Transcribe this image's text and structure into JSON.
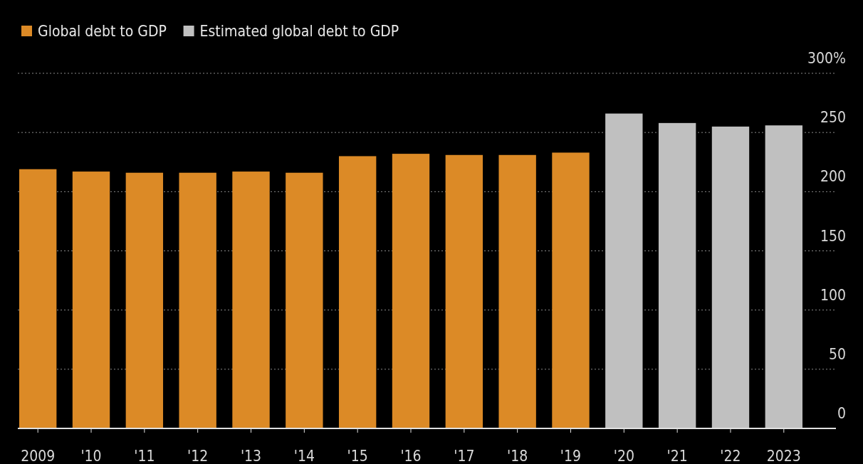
{
  "chart_data": {
    "type": "bar",
    "categories": [
      "2009",
      "'10",
      "'11",
      "'12",
      "'13",
      "'14",
      "'15",
      "'16",
      "'17",
      "'18",
      "'19",
      "'20",
      "'21",
      "'22",
      "2023"
    ],
    "series": [
      {
        "name": "Global debt to GDP",
        "color": "#dc8a26",
        "values": [
          219,
          217,
          216,
          216,
          217,
          216,
          230,
          232,
          231,
          231,
          233,
          null,
          null,
          null,
          null
        ]
      },
      {
        "name": "Estimated global debt to GDP",
        "color": "#c0c0c0",
        "values": [
          null,
          null,
          null,
          null,
          null,
          null,
          null,
          null,
          null,
          null,
          null,
          266,
          258,
          255,
          256
        ]
      }
    ],
    "ylim": [
      0,
      300
    ],
    "yticks": [
      0,
      50,
      100,
      150,
      200,
      250,
      {
        "value": 300,
        "label": "300%"
      }
    ],
    "grid": "y",
    "legend": "top left"
  }
}
